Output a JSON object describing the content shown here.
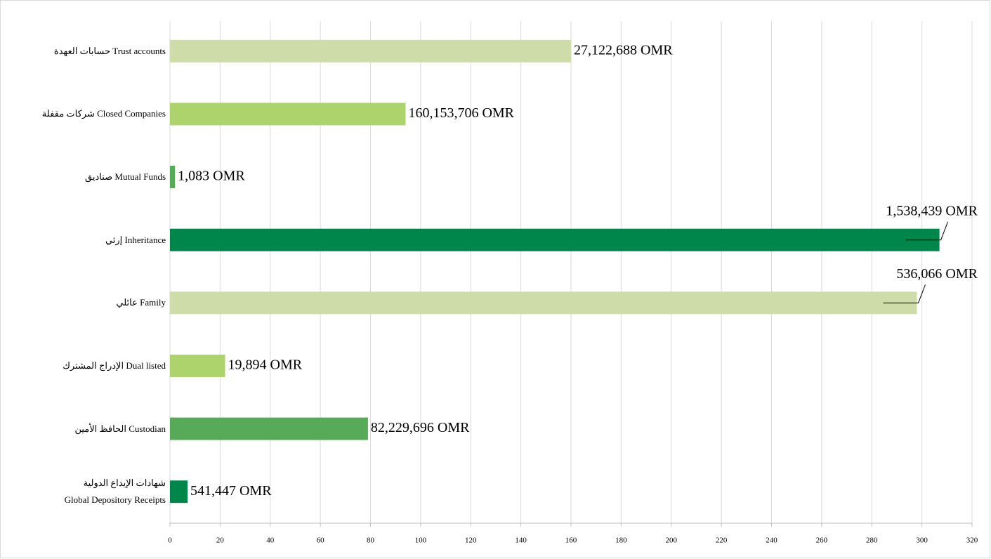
{
  "chart_data": {
    "type": "bar",
    "orientation": "horizontal",
    "categories": [
      "حسابات العهدة  Trust accounts",
      "شركات مقفلة Closed Companies",
      "صناديق Mutual Funds",
      "إرثي Inheritance",
      "عائلي Family",
      "الإدراج المشترك  Dual listed",
      "الحافظ الأمين   Custodian",
      "شهادات الإيداع الدولية\nGlobal Depository Receipts"
    ],
    "values": [
      160,
      94,
      2,
      307,
      298,
      22,
      79,
      7
    ],
    "colors": [
      "#cddca9",
      "#add46c",
      "#57ab58",
      "#00854a",
      "#cddca9",
      "#add46c",
      "#57ab58",
      "#00854a"
    ],
    "annotations": [
      "27,122,688 OMR",
      "160,153,706 OMR",
      "1,083 OMR",
      "1,538,439 OMR",
      "536,066 OMR",
      "19,894 OMR",
      "82,229,696 OMR",
      "541,447 OMR"
    ],
    "xlim": [
      0,
      320
    ],
    "xticks": [
      0,
      20,
      40,
      60,
      80,
      100,
      120,
      140,
      160,
      180,
      200,
      220,
      240,
      260,
      280,
      300,
      320
    ],
    "grid": true
  }
}
